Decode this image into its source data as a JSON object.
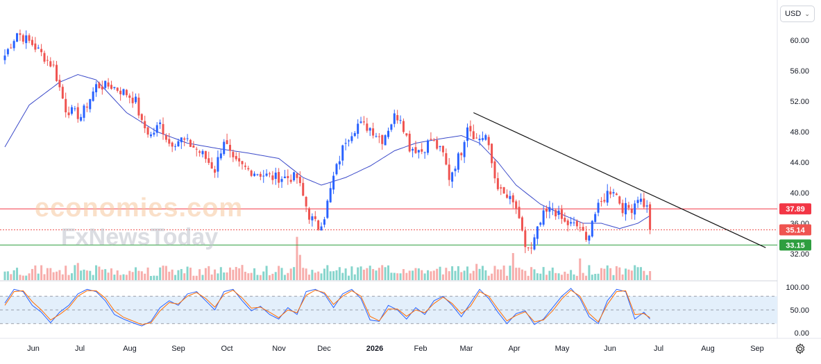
{
  "currency_button": {
    "label": "USD"
  },
  "watermark": {
    "line1": "economies.com",
    "line2": "FxNewsToday"
  },
  "colors": {
    "up": "#2962ff",
    "down": "#ef5350",
    "ma": "#3a49c9",
    "trendline": "#111111",
    "resistance": "#f23645",
    "support": "#2e9e3f",
    "current": "#ef5350",
    "stoch_k": "#2962ff",
    "stoch_d": "#ff6d00",
    "stoch_band": "#e3effb"
  },
  "chart_data": [
    {
      "type": "candlestick",
      "ylim": [
        30,
        63
      ],
      "y_ticks": [
        "60.00",
        "56.00",
        "52.00",
        "48.00",
        "44.00",
        "40.00",
        "36.00",
        "32.00"
      ],
      "x_ticks": [
        "Jun",
        "Jul",
        "Aug",
        "Sep",
        "Oct",
        "Nov",
        "Dec",
        "2026",
        "Feb",
        "Mar",
        "Apr",
        "May",
        "Jun",
        "Jul",
        "Aug",
        "Sep"
      ],
      "price_path": [
        [
          0,
          58
        ],
        [
          4,
          61
        ],
        [
          9,
          59.5
        ],
        [
          16,
          56.5
        ],
        [
          20,
          51
        ],
        [
          25,
          50
        ],
        [
          30,
          54
        ],
        [
          35,
          54
        ],
        [
          40,
          53
        ],
        [
          43,
          52
        ],
        [
          45,
          49
        ],
        [
          48,
          47.5
        ],
        [
          51,
          49
        ],
        [
          54,
          46.5
        ],
        [
          58,
          47
        ],
        [
          62,
          46
        ],
        [
          65,
          45
        ],
        [
          69,
          43
        ],
        [
          72,
          47
        ],
        [
          75,
          44
        ],
        [
          80,
          43
        ],
        [
          88,
          42
        ],
        [
          96,
          42
        ],
        [
          98,
          39.5
        ],
        [
          100,
          37
        ],
        [
          103,
          35.5
        ],
        [
          105,
          37
        ],
        [
          108,
          42
        ],
        [
          112,
          47
        ],
        [
          116,
          49
        ],
        [
          120,
          48.5
        ],
        [
          124,
          47
        ],
        [
          128,
          50
        ],
        [
          130,
          50
        ],
        [
          133,
          46
        ],
        [
          137,
          45.5
        ],
        [
          140,
          47
        ],
        [
          144,
          45
        ],
        [
          146,
          42
        ],
        [
          150,
          45.5
        ],
        [
          152,
          49
        ],
        [
          155,
          47
        ],
        [
          158,
          47.5
        ],
        [
          161,
          42
        ],
        [
          163,
          40
        ],
        [
          166,
          39
        ],
        [
          168,
          38
        ],
        [
          169,
          36
        ],
        [
          171,
          33
        ],
        [
          173,
          32.5
        ],
        [
          175,
          35
        ],
        [
          177,
          37
        ],
        [
          180,
          38
        ],
        [
          184,
          36
        ],
        [
          189,
          35.5
        ],
        [
          191,
          33.5
        ],
        [
          193,
          36.5
        ],
        [
          195,
          38
        ],
        [
          198,
          40
        ],
        [
          200,
          40.5
        ],
        [
          203,
          38
        ],
        [
          206,
          38
        ],
        [
          208,
          39.5
        ],
        [
          211,
          38
        ],
        [
          212,
          35.14
        ]
      ],
      "moving_average": [
        [
          0,
          46
        ],
        [
          8,
          51.5
        ],
        [
          18,
          54.5
        ],
        [
          24,
          55.5
        ],
        [
          30,
          54.8
        ],
        [
          40,
          50.5
        ],
        [
          50,
          48
        ],
        [
          60,
          46.5
        ],
        [
          70,
          45.8
        ],
        [
          80,
          45.2
        ],
        [
          90,
          44.5
        ],
        [
          98,
          42
        ],
        [
          104,
          41
        ],
        [
          112,
          42
        ],
        [
          120,
          43.5
        ],
        [
          128,
          45.5
        ],
        [
          135,
          46.5
        ],
        [
          142,
          47
        ],
        [
          150,
          47.5
        ],
        [
          156,
          46.5
        ],
        [
          162,
          44
        ],
        [
          168,
          41
        ],
        [
          176,
          38.5
        ],
        [
          184,
          37
        ],
        [
          190,
          36
        ],
        [
          196,
          36
        ],
        [
          202,
          35.3
        ],
        [
          208,
          36
        ],
        [
          212,
          37
        ]
      ],
      "trendline": [
        [
          154,
          50.5
        ],
        [
          250,
          32.8
        ]
      ],
      "levels": [
        {
          "label": "37.89",
          "value": 37.89
        },
        {
          "label": "35.14",
          "value": 35.14
        },
        {
          "label": "33.15",
          "value": 33.15
        }
      ],
      "volume_spikes": [
        [
          24,
          0.95
        ],
        [
          96,
          2.4
        ],
        [
          97,
          1.4
        ],
        [
          155,
          0.9
        ],
        [
          166,
          0.8
        ],
        [
          167,
          1.5
        ],
        [
          189,
          1.2
        ],
        [
          212,
          0.5
        ]
      ]
    },
    {
      "type": "line",
      "ylim": [
        0,
        100
      ],
      "y_ticks": [
        "100.00",
        "50.00",
        "0.00"
      ],
      "band": [
        20,
        80
      ],
      "series": [
        {
          "values": [
            [
              0,
              65
            ],
            [
              3,
              95
            ],
            [
              6,
              90
            ],
            [
              9,
              60
            ],
            [
              12,
              45
            ],
            [
              15,
              22
            ],
            [
              18,
              45
            ],
            [
              21,
              60
            ],
            [
              24,
              85
            ],
            [
              27,
              95
            ],
            [
              30,
              90
            ],
            [
              33,
              70
            ],
            [
              36,
              40
            ],
            [
              39,
              30
            ],
            [
              42,
              22
            ],
            [
              45,
              15
            ],
            [
              48,
              25
            ],
            [
              51,
              55
            ],
            [
              54,
              70
            ],
            [
              57,
              60
            ],
            [
              60,
              85
            ],
            [
              63,
              90
            ],
            [
              66,
              70
            ],
            [
              69,
              50
            ],
            [
              72,
              90
            ],
            [
              75,
              95
            ],
            [
              78,
              70
            ],
            [
              81,
              48
            ],
            [
              84,
              58
            ],
            [
              87,
              40
            ],
            [
              90,
              30
            ],
            [
              93,
              55
            ],
            [
              96,
              40
            ],
            [
              99,
              90
            ],
            [
              102,
              95
            ],
            [
              105,
              85
            ],
            [
              108,
              55
            ],
            [
              111,
              85
            ],
            [
              114,
              95
            ],
            [
              117,
              75
            ],
            [
              120,
              28
            ],
            [
              123,
              25
            ],
            [
              126,
              60
            ],
            [
              129,
              50
            ],
            [
              132,
              30
            ],
            [
              135,
              55
            ],
            [
              138,
              40
            ],
            [
              141,
              70
            ],
            [
              144,
              80
            ],
            [
              147,
              60
            ],
            [
              150,
              35
            ],
            [
              153,
              65
            ],
            [
              156,
              95
            ],
            [
              159,
              75
            ],
            [
              162,
              45
            ],
            [
              165,
              20
            ],
            [
              168,
              42
            ],
            [
              171,
              48
            ],
            [
              174,
              18
            ],
            [
              177,
              30
            ],
            [
              180,
              55
            ],
            [
              183,
              80
            ],
            [
              186,
              97
            ],
            [
              189,
              75
            ],
            [
              192,
              35
            ],
            [
              195,
              20
            ],
            [
              198,
              70
            ],
            [
              201,
              95
            ],
            [
              204,
              90
            ],
            [
              207,
              30
            ],
            [
              210,
              45
            ],
            [
              212,
              30
            ],
            [
              213,
              28
            ]
          ]
        },
        {
          "values": [
            [
              0,
              60
            ],
            [
              3,
              90
            ],
            [
              6,
              92
            ],
            [
              9,
              68
            ],
            [
              12,
              50
            ],
            [
              15,
              28
            ],
            [
              18,
              40
            ],
            [
              21,
              55
            ],
            [
              24,
              80
            ],
            [
              27,
              92
            ],
            [
              30,
              92
            ],
            [
              33,
              76
            ],
            [
              36,
              48
            ],
            [
              39,
              34
            ],
            [
              42,
              26
            ],
            [
              45,
              18
            ],
            [
              48,
              22
            ],
            [
              51,
              48
            ],
            [
              54,
              66
            ],
            [
              57,
              63
            ],
            [
              60,
              80
            ],
            [
              63,
              88
            ],
            [
              66,
              75
            ],
            [
              69,
              56
            ],
            [
              72,
              84
            ],
            [
              75,
              93
            ],
            [
              78,
              76
            ],
            [
              81,
              54
            ],
            [
              84,
              56
            ],
            [
              87,
              45
            ],
            [
              90,
              33
            ],
            [
              93,
              50
            ],
            [
              96,
              44
            ],
            [
              99,
              82
            ],
            [
              102,
              93
            ],
            [
              105,
              88
            ],
            [
              108,
              62
            ],
            [
              111,
              80
            ],
            [
              114,
              92
            ],
            [
              117,
              80
            ],
            [
              120,
              36
            ],
            [
              123,
              26
            ],
            [
              126,
              52
            ],
            [
              129,
              52
            ],
            [
              132,
              36
            ],
            [
              135,
              50
            ],
            [
              138,
              44
            ],
            [
              141,
              64
            ],
            [
              144,
              78
            ],
            [
              147,
              64
            ],
            [
              150,
              42
            ],
            [
              153,
              58
            ],
            [
              156,
              90
            ],
            [
              159,
              80
            ],
            [
              162,
              52
            ],
            [
              165,
              26
            ],
            [
              168,
              38
            ],
            [
              171,
              46
            ],
            [
              174,
              24
            ],
            [
              177,
              28
            ],
            [
              180,
              48
            ],
            [
              183,
              74
            ],
            [
              186,
              93
            ],
            [
              189,
              80
            ],
            [
              192,
              42
            ],
            [
              195,
              24
            ],
            [
              198,
              62
            ],
            [
              201,
              90
            ],
            [
              204,
              92
            ],
            [
              207,
              40
            ],
            [
              210,
              42
            ],
            [
              212,
              33
            ],
            [
              213,
              30
            ]
          ]
        }
      ]
    }
  ]
}
